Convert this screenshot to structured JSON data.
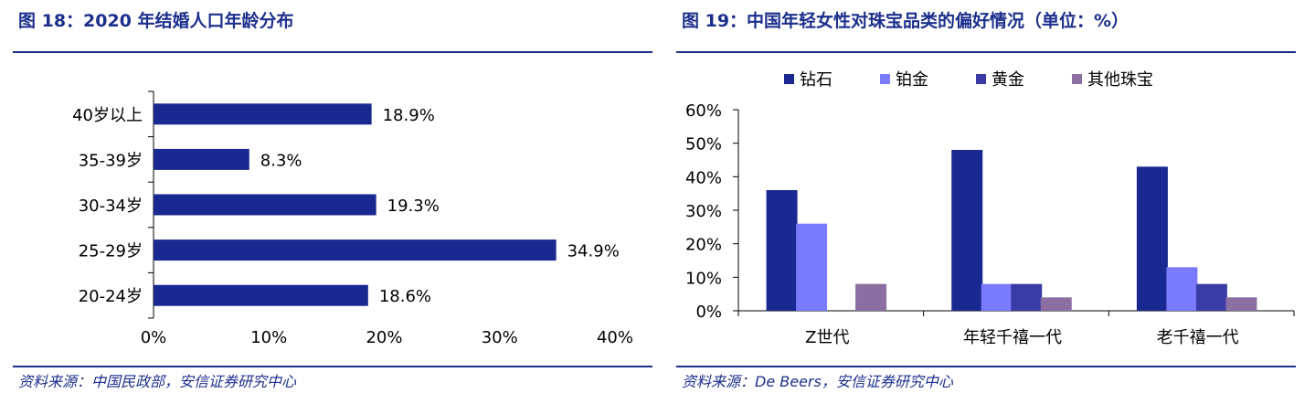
{
  "left": {
    "title": "图 18：2020 年结婚人口年龄分布",
    "source": "资料来源：中国民政部，安信证券研究中心",
    "chart_data": {
      "type": "bar",
      "orientation": "horizontal",
      "categories": [
        "40岁以上",
        "35-39岁",
        "30-34岁",
        "25-29岁",
        "20-24岁"
      ],
      "values": [
        18.9,
        8.3,
        19.3,
        34.9,
        18.6
      ],
      "value_labels": [
        "18.9%",
        "8.3%",
        "19.3%",
        "34.9%",
        "18.6%"
      ],
      "xlim": [
        0,
        40
      ],
      "xticks": [
        "0%",
        "10%",
        "20%",
        "30%",
        "40%"
      ],
      "grid": false,
      "color": "#1a2891"
    }
  },
  "right": {
    "title": "图 19：中国年轻女性对珠宝品类的偏好情况（单位：%）",
    "source": "资料来源：De Beers，安信证券研究中心",
    "chart_data": {
      "type": "bar",
      "categories": [
        "Z世代",
        "年轻千禧一代",
        "老千禧一代"
      ],
      "series": [
        {
          "name": "钻石",
          "values": [
            36,
            48,
            43
          ],
          "color": "#1a2891"
        },
        {
          "name": "铂金",
          "values": [
            26,
            8,
            13
          ],
          "color": "#7b7bff"
        },
        {
          "name": "黄金",
          "values": [
            0,
            8,
            8
          ],
          "color": "#3b3ba8"
        },
        {
          "name": "其他珠宝",
          "values": [
            8,
            4,
            4
          ],
          "color": "#8b6fa3"
        }
      ],
      "ylim": [
        0,
        60
      ],
      "yticks": [
        "0%",
        "10%",
        "20%",
        "30%",
        "40%",
        "50%",
        "60%"
      ],
      "legend_position": "top",
      "grid": false
    }
  }
}
